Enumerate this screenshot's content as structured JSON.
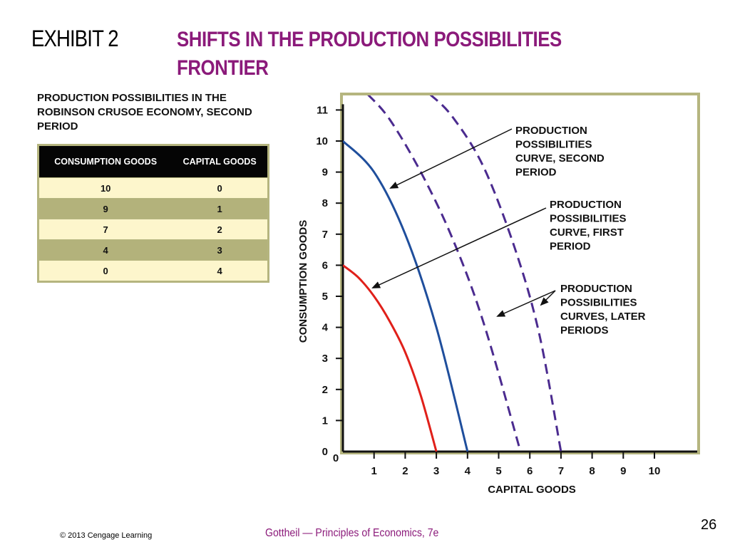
{
  "header": {
    "exhibit": "EXHIBIT 2",
    "title": "SHIFTS IN THE PRODUCTION POSSIBILITIES FRONTIER"
  },
  "table": {
    "caption": "PRODUCTION POSSIBILITIES IN THE ROBINSON CRUSOE ECONOMY, SECOND PERIOD",
    "headers": [
      "CONSUMPTION GOODS",
      "CAPITAL GOODS"
    ],
    "rows": [
      [
        "10",
        "0"
      ],
      [
        "9",
        "1"
      ],
      [
        "7",
        "2"
      ],
      [
        "4",
        "3"
      ],
      [
        "0",
        "4"
      ]
    ]
  },
  "chart_data": {
    "type": "line",
    "xlabel": "CAPITAL GOODS",
    "ylabel": "CONSUMPTION GOODS",
    "xlim": [
      0,
      11
    ],
    "ylim": [
      0,
      11
    ],
    "x_ticks": [
      0,
      1,
      2,
      3,
      4,
      5,
      6,
      7,
      8,
      9,
      10
    ],
    "y_ticks": [
      0,
      1,
      2,
      3,
      4,
      5,
      6,
      7,
      8,
      9,
      10,
      11
    ],
    "grid": false,
    "series": [
      {
        "name": "PRODUCTION POSSIBILITIES CURVE, FIRST PERIOD",
        "color": "#e0201a",
        "style": "solid",
        "x": [
          0,
          0.5,
          1,
          1.5,
          2,
          2.5,
          3
        ],
        "y": [
          6,
          5.6,
          5,
          4.2,
          3.2,
          1.8,
          0
        ]
      },
      {
        "name": "PRODUCTION POSSIBILITIES CURVE, SECOND PERIOD",
        "color": "#1f4e9c",
        "style": "solid",
        "x": [
          0,
          1,
          2,
          3,
          4
        ],
        "y": [
          10,
          9,
          7,
          4,
          0
        ]
      },
      {
        "name": "PRODUCTION POSSIBILITIES CURVES, LATER PERIODS",
        "color": "#4b2b8f",
        "style": "dashed",
        "x": [
          0.8,
          1.5,
          2.5,
          3.5,
          4.5,
          5.7
        ],
        "y": [
          11.5,
          10.7,
          9,
          6.9,
          4.2,
          0
        ]
      },
      {
        "name": "PRODUCTION POSSIBILITIES CURVES, LATER PERIODS",
        "color": "#4b2b8f",
        "style": "dashed",
        "x": [
          2.8,
          3.5,
          4.5,
          5.5,
          6.3,
          7
        ],
        "y": [
          11.5,
          10.8,
          9.2,
          6.6,
          3.8,
          0
        ]
      }
    ],
    "annotations": [
      {
        "lines": [
          "PRODUCTION",
          "POSSIBILITIES",
          "CURVE, SECOND",
          "PERIOD"
        ]
      },
      {
        "lines": [
          "PRODUCTION",
          "POSSIBILITIES",
          "CURVE, FIRST",
          "PERIOD"
        ]
      },
      {
        "lines": [
          "PRODUCTION",
          "POSSIBILITIES",
          "CURVES, LATER",
          "PERIODS"
        ]
      }
    ]
  },
  "footer": {
    "copyright": "© 2013 Cengage Learning",
    "book": "Gottheil — Principles of Economics, 7e",
    "page": "26"
  }
}
